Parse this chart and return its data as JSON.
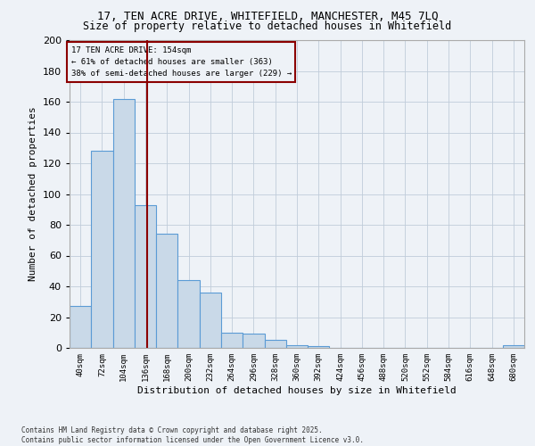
{
  "title_line1": "17, TEN ACRE DRIVE, WHITEFIELD, MANCHESTER, M45 7LQ",
  "title_line2": "Size of property relative to detached houses in Whitefield",
  "xlabel": "Distribution of detached houses by size in Whitefield",
  "ylabel": "Number of detached properties",
  "bin_labels": [
    "40sqm",
    "72sqm",
    "104sqm",
    "136sqm",
    "168sqm",
    "200sqm",
    "232sqm",
    "264sqm",
    "296sqm",
    "328sqm",
    "360sqm",
    "392sqm",
    "424sqm",
    "456sqm",
    "488sqm",
    "520sqm",
    "552sqm",
    "584sqm",
    "616sqm",
    "648sqm",
    "680sqm"
  ],
  "bin_left_edges": [
    40,
    72,
    104,
    136,
    168,
    200,
    232,
    264,
    296,
    328,
    360,
    392,
    424,
    456,
    488,
    520,
    552,
    584,
    616,
    648,
    680
  ],
  "bar_heights": [
    27,
    128,
    162,
    93,
    74,
    44,
    36,
    10,
    9,
    5,
    2,
    1,
    0,
    0,
    0,
    0,
    0,
    0,
    0,
    0,
    2
  ],
  "bar_color": "#c9d9e8",
  "bar_edge_color": "#5b9bd5",
  "grid_color": "#c0ccda",
  "bg_color": "#eef2f7",
  "vline_x": 154,
  "vline_color": "#8b0000",
  "annotation_title": "17 TEN ACRE DRIVE: 154sqm",
  "annotation_line1": "← 61% of detached houses are smaller (363)",
  "annotation_line2": "38% of semi-detached houses are larger (229) →",
  "ylim": [
    0,
    200
  ],
  "yticks": [
    0,
    20,
    40,
    60,
    80,
    100,
    120,
    140,
    160,
    180,
    200
  ],
  "footer_line1": "Contains HM Land Registry data © Crown copyright and database right 2025.",
  "footer_line2": "Contains public sector information licensed under the Open Government Licence v3.0.",
  "bin_width": 32
}
